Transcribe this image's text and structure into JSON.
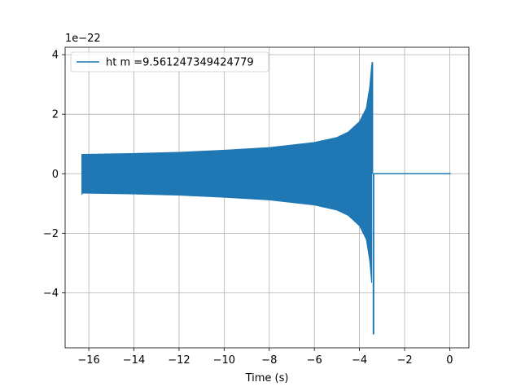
{
  "chart_data": {
    "type": "line",
    "title": "",
    "xlabel": "Time (s)",
    "ylabel": "",
    "y_offset_text": "1e−22",
    "xlim": [
      -17.05,
      0.85
    ],
    "ylim": [
      -5.85,
      4.25
    ],
    "x_ticks": [
      -16,
      -14,
      -12,
      -10,
      -8,
      -6,
      -4,
      -2,
      0
    ],
    "x_tick_labels": [
      "−16",
      "−14",
      "−12",
      "−10",
      "−8",
      "−6",
      "−4",
      "−2",
      "0"
    ],
    "y_ticks": [
      -4,
      -2,
      0,
      2,
      4
    ],
    "y_tick_labels": [
      "−4",
      "−2",
      "0",
      "2",
      "4"
    ],
    "grid": true,
    "legend_position": "upper-left",
    "series": [
      {
        "name": "ht m =9.561247349424779",
        "color": "#1f77b4",
        "envelope": {
          "t_start": -16.3,
          "t_merger": -3.38,
          "t_end": 0.05,
          "amplitude_points": [
            [
              -16.3,
              0.65
            ],
            [
              -14,
              0.68
            ],
            [
              -12,
              0.72
            ],
            [
              -10,
              0.79
            ],
            [
              -8,
              0.88
            ],
            [
              -6,
              1.05
            ],
            [
              -5,
              1.22
            ],
            [
              -4.5,
              1.4
            ],
            [
              -4,
              1.75
            ],
            [
              -3.7,
              2.2
            ],
            [
              -3.55,
              2.9
            ],
            [
              -3.45,
              3.75
            ]
          ],
          "min_peak": -5.4,
          "max_peak": 3.75
        }
      }
    ]
  }
}
